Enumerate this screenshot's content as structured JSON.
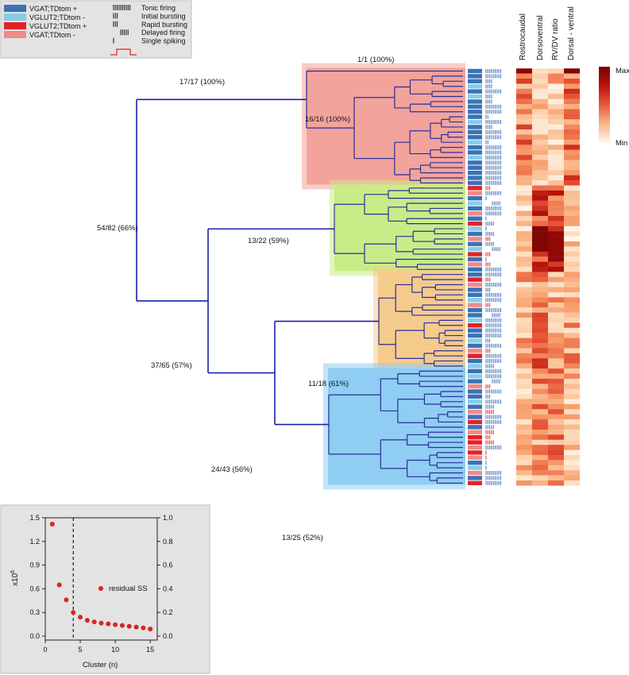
{
  "colors": {
    "vgat_pos": "#3b72b8",
    "vglut2_neg": "#86cde8",
    "vglut2_pos": "#e52125",
    "vgat_neg": "#ef8a8a",
    "tree_line": "#2b2f9a",
    "cluster_red": "#f2a39b",
    "cluster_green": "#c9ec88",
    "cluster_orange": "#f5cb8c",
    "cluster_blue": "#8fcdf2",
    "inset_bg": "#e3e3e3",
    "scatter_point": "#d7261e",
    "heat_max": "#7a0000",
    "heat_min": "#fff7ee"
  },
  "legend": {
    "genotypes": [
      {
        "label": "VGAT;TDtom +",
        "color": "#3b72b8"
      },
      {
        "label": "VGLUT2;TDtom -",
        "color": "#86cde8"
      },
      {
        "label": "VGLUT2;TDtom +",
        "color": "#e52125"
      },
      {
        "label": "VGAT;TDtom -",
        "color": "#ef8a8a"
      }
    ],
    "firing": [
      {
        "label": "Tonic firing",
        "glyph": "tonic-spikes-icon"
      },
      {
        "label": "Initial bursting",
        "glyph": "initial-burst-icon"
      },
      {
        "label": "Rapid bursting",
        "glyph": "rapid-burst-icon"
      },
      {
        "label": "Delayed firing",
        "glyph": "delayed-spikes-icon"
      },
      {
        "label": "Single spiking",
        "glyph": "single-spike-icon"
      }
    ],
    "step_icon": "current-step-icon"
  },
  "tree": {
    "nodes": {
      "root": "54/82 (66%)",
      "red_top": "17/17 (100%)",
      "red_leaf": "1/1 (100%)",
      "red_sub": "16/16 (100%)",
      "rest": "37/65 (57%)",
      "green": "13/22 (59%)",
      "orange_blue": "24/43 (56%)",
      "orange": "11/18 (61%)",
      "blue": "13/25 (52%)"
    }
  },
  "heatmap": {
    "columns": [
      "Rostrocaudal",
      "Dorsoventral",
      "RV/DV ratio",
      "Dorsal - ventral"
    ],
    "scale": {
      "max_label": "Max",
      "min_label": "Min"
    }
  },
  "chart_data": {
    "type": "scatter",
    "title": "",
    "xlabel": "Cluster (n)",
    "ylabel": "x10^6",
    "ylabel_base": "x10",
    "ylabel_exp": "6",
    "y2label": "",
    "xlim": [
      0,
      16
    ],
    "ylim": [
      -0.05,
      1.5
    ],
    "y2lim": [
      -0.0333,
      1.0
    ],
    "xticks": [
      0,
      5,
      10,
      15
    ],
    "yticks": [
      0.0,
      0.3,
      0.6,
      0.9,
      1.2,
      1.5
    ],
    "ytick_labels": [
      "0.0",
      "0.3",
      "0.6",
      "0.9",
      "1.2",
      "1.5"
    ],
    "y2ticks": [
      0.0,
      0.2,
      0.4,
      0.6,
      0.8,
      1.0
    ],
    "y2tick_labels": [
      "0.0",
      "0.2",
      "0.4",
      "0.6",
      "0.8",
      "1.0"
    ],
    "series": [
      {
        "name": "residual SS",
        "x": [
          1,
          2,
          3,
          4,
          5,
          6,
          7,
          8,
          9,
          10,
          11,
          12,
          13,
          14,
          15
        ],
        "y": [
          1.42,
          0.65,
          0.46,
          0.3,
          0.24,
          0.2,
          0.18,
          0.165,
          0.155,
          0.145,
          0.135,
          0.125,
          0.115,
          0.105,
          0.09
        ]
      }
    ],
    "vline_x": 4,
    "legend_label": "residual SS",
    "legend_position": "center-right"
  }
}
